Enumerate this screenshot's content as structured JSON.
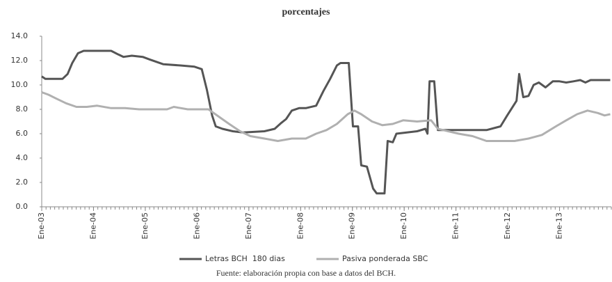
{
  "chart_data": {
    "type": "line",
    "title": "porcentajes",
    "source": "Fuente: elaboración propia con base a datos del BCH.",
    "legend": "bottom",
    "xlim": [
      2003,
      2014
    ],
    "xticks": [
      {
        "value": 2003,
        "label": "Ene-03"
      },
      {
        "value": 2004,
        "label": "Ene-04"
      },
      {
        "value": 2005,
        "label": "Ene-05"
      },
      {
        "value": 2006,
        "label": "Ene-06"
      },
      {
        "value": 2007,
        "label": "Ene-07"
      },
      {
        "value": 2008,
        "label": "Ene-08"
      },
      {
        "value": 2009,
        "label": "Ene-09"
      },
      {
        "value": 2010,
        "label": "Ene-10"
      },
      {
        "value": 2011,
        "label": "Ene-11"
      },
      {
        "value": 2012,
        "label": "Ene-12"
      },
      {
        "value": 2013,
        "label": "Ene-13"
      }
    ],
    "ylim": [
      0,
      14
    ],
    "yticks": [
      {
        "value": 0,
        "label": "0.0"
      },
      {
        "value": 2,
        "label": "2.0"
      },
      {
        "value": 4,
        "label": "4.0"
      },
      {
        "value": 6,
        "label": "6.0"
      },
      {
        "value": 8,
        "label": "8.0"
      },
      {
        "value": 10,
        "label": "10.0"
      },
      {
        "value": 12,
        "label": "12.0"
      },
      {
        "value": 14,
        "label": "14.0"
      }
    ],
    "series": [
      {
        "name": "Letras BCH  180 dias",
        "color": "#555555",
        "x": [
          2003.0,
          2003.07,
          2003.4,
          2003.5,
          2003.59,
          2003.7,
          2003.81,
          2004.34,
          2004.48,
          2004.58,
          2004.74,
          2004.95,
          2005.08,
          2005.35,
          2005.68,
          2005.95,
          2006.09,
          2006.19,
          2006.29,
          2006.36,
          2006.49,
          2006.69,
          2006.89,
          2007.3,
          2007.5,
          2007.63,
          2007.72,
          2007.83,
          2007.97,
          2008.1,
          2008.3,
          2008.44,
          2008.57,
          2008.7,
          2008.77,
          2008.93,
          2009.01,
          2009.11,
          2009.17,
          2009.28,
          2009.4,
          2009.47,
          2009.62,
          2009.68,
          2009.78,
          2009.85,
          2010.25,
          2010.41,
          2010.45,
          2010.49,
          2010.58,
          2010.65,
          2010.92,
          2011.59,
          2011.86,
          2011.99,
          2012.17,
          2012.22,
          2012.3,
          2012.4,
          2012.5,
          2012.6,
          2012.73,
          2012.87,
          2013.0,
          2013.13,
          2013.27,
          2013.4,
          2013.5,
          2013.6,
          2013.98
        ],
        "values": [
          10.7,
          10.5,
          10.5,
          10.9,
          11.8,
          12.6,
          12.8,
          12.8,
          12.5,
          12.3,
          12.4,
          12.3,
          12.1,
          11.7,
          11.6,
          11.5,
          11.3,
          9.6,
          7.5,
          6.6,
          6.4,
          6.2,
          6.1,
          6.2,
          6.4,
          6.9,
          7.2,
          7.9,
          8.1,
          8.1,
          8.3,
          9.5,
          10.5,
          11.6,
          11.8,
          11.8,
          6.6,
          6.6,
          3.4,
          3.3,
          1.5,
          1.1,
          1.1,
          5.4,
          5.3,
          6.0,
          6.2,
          6.4,
          6.0,
          10.3,
          10.3,
          6.3,
          6.3,
          6.3,
          6.6,
          7.5,
          8.7,
          10.9,
          9.0,
          9.1,
          10.0,
          10.2,
          9.8,
          10.3,
          10.3,
          10.2,
          10.3,
          10.4,
          10.2,
          10.4,
          10.4
        ]
      },
      {
        "name": "Pasiva ponderada SBC",
        "color": "#b0b0b0",
        "x": [
          2003.0,
          2003.13,
          2003.27,
          2003.47,
          2003.67,
          2003.87,
          2004.07,
          2004.34,
          2004.61,
          2004.88,
          2005.42,
          2005.55,
          2005.82,
          2006.22,
          2006.42,
          2006.62,
          2006.83,
          2007.03,
          2007.3,
          2007.56,
          2007.83,
          2008.1,
          2008.3,
          2008.5,
          2008.7,
          2008.91,
          2009.04,
          2009.17,
          2009.38,
          2009.58,
          2009.78,
          2009.98,
          2010.25,
          2010.52,
          2010.65,
          2010.85,
          2011.05,
          2011.32,
          2011.59,
          2011.86,
          2012.13,
          2012.4,
          2012.66,
          2012.93,
          2013.13,
          2013.34,
          2013.54,
          2013.74,
          2013.87,
          2013.98
        ],
        "values": [
          9.4,
          9.2,
          8.9,
          8.5,
          8.2,
          8.2,
          8.3,
          8.1,
          8.1,
          8.0,
          8.0,
          8.2,
          8.0,
          8.0,
          7.4,
          6.8,
          6.2,
          5.8,
          5.6,
          5.4,
          5.6,
          5.6,
          6.0,
          6.3,
          6.8,
          7.6,
          7.9,
          7.6,
          7.0,
          6.7,
          6.8,
          7.1,
          7.0,
          7.1,
          6.4,
          6.2,
          6.0,
          5.8,
          5.4,
          5.4,
          5.4,
          5.6,
          5.9,
          6.6,
          7.1,
          7.6,
          7.9,
          7.7,
          7.5,
          7.6
        ]
      }
    ]
  }
}
